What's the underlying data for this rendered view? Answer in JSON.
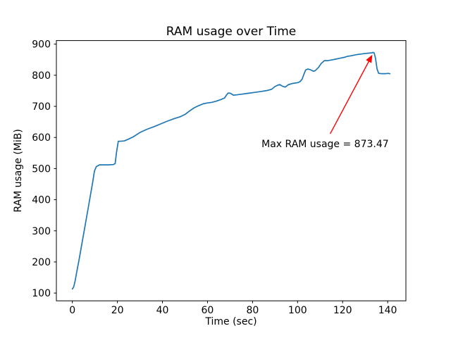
{
  "window": {
    "background": "#ffffff"
  },
  "chart_data": {
    "type": "line",
    "title": "RAM usage over Time",
    "xlabel": "Time (sec)",
    "ylabel": "RAM usage (MiB)",
    "xlim": [
      -7.1,
      148.1
    ],
    "ylim": [
      75,
      911.5
    ],
    "x_ticks": [
      0,
      20,
      40,
      60,
      80,
      100,
      120,
      140
    ],
    "y_ticks": [
      100,
      200,
      300,
      400,
      500,
      600,
      700,
      800,
      900
    ],
    "grid": false,
    "legend": null,
    "line_color": "#1f77b4",
    "line_width": 1.7,
    "spine_color": "#000000",
    "series": [
      {
        "name": "RAM usage",
        "x": [
          0,
          0.6,
          1.2,
          2,
          3,
          5,
          7,
          9,
          9.8,
          10.6,
          12,
          14,
          16,
          18.2,
          19,
          19.6,
          20.4,
          21.5,
          23.1,
          25,
          27,
          30,
          33,
          36,
          39,
          42,
          45,
          48,
          50,
          52,
          54,
          56,
          58,
          60,
          62,
          64,
          66,
          67.6,
          68.4,
          69.2,
          70.2,
          71.5,
          73,
          75,
          78,
          81,
          84,
          86.5,
          88.5,
          90,
          91.2,
          92.1,
          93.2,
          94.5,
          96,
          98,
          100,
          101,
          102,
          102.8,
          103.6,
          104.6,
          105.6,
          107,
          107.7,
          109.3,
          110.5,
          111.9,
          113.5,
          115,
          117.1,
          119,
          121,
          122.3,
          124,
          126,
          128,
          130,
          131.5,
          133,
          133.5,
          134,
          134.6,
          135.3,
          136,
          137.5,
          139,
          140.2,
          141
        ],
        "y": [
          113,
          120,
          138,
          170,
          208,
          290,
          372,
          455,
          492,
          506,
          512,
          512,
          512,
          513,
          516,
          552,
          588,
          588,
          589,
          595,
          602,
          616,
          626,
          634,
          643,
          652,
          660,
          667,
          674,
          685,
          695,
          702,
          708,
          711,
          713,
          717,
          722,
          727,
          736,
          743,
          742,
          736,
          737,
          739,
          742,
          745,
          748,
          751,
          755,
          764,
          768,
          770,
          765,
          762,
          770,
          774,
          776,
          779,
          787,
          803,
          817,
          820,
          818,
          813,
          814,
          825,
          838,
          847,
          847,
          849,
          852,
          855,
          858,
          861,
          863,
          866,
          868,
          870,
          871,
          872,
          873.47,
          872,
          855,
          820,
          806,
          805,
          805,
          806,
          805
        ]
      }
    ],
    "max_value": 873.47,
    "annotation": {
      "text": "Max RAM usage = 873.47",
      "color": "#ff0000",
      "text_pos": [
        84,
        569
      ],
      "arrow_from": [
        114.5,
        612
      ],
      "arrow_to": [
        133.2,
        866
      ]
    }
  }
}
